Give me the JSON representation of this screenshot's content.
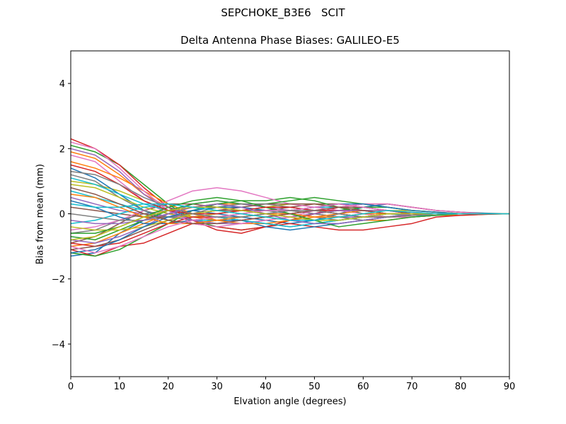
{
  "figure": {
    "suptitle": "SEPCHOKE_B3E6   SCIT"
  },
  "chart_data": {
    "type": "line",
    "title": "Delta Antenna Phase Biases: GALILEO-E5",
    "xlabel": "Elvation angle (degrees)",
    "ylabel": "Bias from mean (mm)",
    "xlim": [
      0,
      90
    ],
    "ylim": [
      -5,
      5
    ],
    "xticks": [
      0,
      10,
      20,
      30,
      40,
      50,
      60,
      70,
      80,
      90
    ],
    "yticks": [
      -4,
      -2,
      0,
      2,
      4
    ],
    "ytick_labels": [
      "−4",
      "−2",
      "0",
      "2",
      "4"
    ],
    "grid": false,
    "legend": "none",
    "x": [
      0,
      5,
      10,
      15,
      20,
      25,
      30,
      35,
      40,
      45,
      50,
      55,
      60,
      65,
      70,
      75,
      80,
      85,
      90
    ],
    "series": [
      {
        "color": "#1f77b4",
        "values": [
          -1.3,
          -1.2,
          -0.6,
          -0.2,
          0.0,
          0.1,
          0.0,
          -0.1,
          -0.2,
          -0.3,
          -0.2,
          0.0,
          0.2,
          0.3,
          0.2,
          0.1,
          0.05,
          0.02,
          0.0
        ]
      },
      {
        "color": "#ff7f0e",
        "values": [
          1.9,
          1.7,
          1.2,
          0.6,
          0.2,
          -0.1,
          -0.2,
          -0.1,
          0.0,
          0.1,
          0.2,
          0.2,
          0.1,
          0.0,
          -0.05,
          -0.05,
          -0.05,
          -0.02,
          0.0
        ]
      },
      {
        "color": "#2ca02c",
        "values": [
          2.1,
          1.9,
          1.5,
          0.9,
          0.3,
          -0.2,
          -0.4,
          -0.5,
          -0.4,
          -0.2,
          0.0,
          0.1,
          0.2,
          0.2,
          0.1,
          0.05,
          0.0,
          0.0,
          0.0
        ]
      },
      {
        "color": "#d62728",
        "values": [
          -1.1,
          -1.3,
          -1.0,
          -0.9,
          -0.6,
          -0.3,
          -0.4,
          -0.5,
          -0.4,
          -0.3,
          -0.4,
          -0.5,
          -0.5,
          -0.4,
          -0.3,
          -0.1,
          -0.05,
          -0.02,
          0.0
        ]
      },
      {
        "color": "#9467bd",
        "values": [
          0.5,
          0.3,
          0.1,
          0.0,
          -0.1,
          -0.1,
          0.0,
          0.1,
          0.2,
          0.2,
          0.1,
          0.0,
          -0.1,
          -0.1,
          -0.1,
          -0.05,
          0.0,
          0.0,
          0.0
        ]
      },
      {
        "color": "#8c564b",
        "values": [
          -0.9,
          -0.7,
          -0.3,
          0.1,
          0.3,
          0.3,
          0.2,
          0.1,
          0.1,
          0.2,
          0.3,
          0.3,
          0.2,
          0.1,
          0.0,
          0.0,
          0.0,
          0.0,
          0.0
        ]
      },
      {
        "color": "#e377c2",
        "values": [
          1.8,
          1.6,
          1.0,
          0.4,
          0.0,
          -0.2,
          -0.3,
          -0.2,
          -0.1,
          0.0,
          0.1,
          0.1,
          0.1,
          0.0,
          0.0,
          0.0,
          0.0,
          0.0,
          0.0
        ]
      },
      {
        "color": "#7f7f7f",
        "values": [
          -0.6,
          -0.5,
          -0.2,
          0.0,
          0.1,
          0.2,
          0.3,
          0.2,
          0.1,
          0.0,
          -0.1,
          -0.2,
          -0.1,
          0.0,
          0.0,
          0.0,
          0.0,
          0.0,
          0.0
        ]
      },
      {
        "color": "#bcbd22",
        "values": [
          1.0,
          0.9,
          0.7,
          0.4,
          0.1,
          -0.2,
          -0.3,
          -0.3,
          -0.2,
          -0.1,
          0.0,
          0.1,
          0.1,
          0.1,
          0.05,
          0.0,
          0.0,
          0.0,
          0.0
        ]
      },
      {
        "color": "#17becf",
        "values": [
          0.7,
          0.5,
          0.3,
          0.1,
          -0.1,
          -0.2,
          -0.2,
          -0.1,
          0.0,
          0.1,
          0.2,
          0.2,
          0.1,
          0.0,
          -0.05,
          -0.05,
          0.0,
          0.0,
          0.0
        ]
      },
      {
        "color": "#1f77b4",
        "values": [
          1.4,
          1.1,
          0.6,
          0.1,
          -0.2,
          -0.3,
          -0.2,
          -0.2,
          -0.3,
          -0.4,
          -0.3,
          -0.2,
          -0.1,
          0.0,
          0.0,
          0.0,
          0.0,
          0.0,
          0.0
        ]
      },
      {
        "color": "#ff7f0e",
        "values": [
          -1.0,
          -0.9,
          -0.6,
          -0.3,
          0.0,
          0.2,
          0.3,
          0.3,
          0.2,
          0.1,
          0.0,
          -0.1,
          -0.2,
          -0.2,
          -0.1,
          -0.05,
          0.0,
          0.0,
          0.0
        ]
      },
      {
        "color": "#2ca02c",
        "values": [
          -1.2,
          -1.3,
          -1.1,
          -0.7,
          -0.3,
          0.1,
          0.3,
          0.4,
          0.4,
          0.5,
          0.4,
          0.2,
          0.0,
          -0.1,
          -0.1,
          -0.05,
          0.0,
          0.0,
          0.0
        ]
      },
      {
        "color": "#d62728",
        "values": [
          2.3,
          2.0,
          1.5,
          0.8,
          0.2,
          -0.2,
          -0.5,
          -0.6,
          -0.4,
          -0.2,
          0.0,
          0.2,
          0.3,
          0.3,
          0.2,
          0.1,
          0.05,
          0.0,
          0.0
        ]
      },
      {
        "color": "#9467bd",
        "values": [
          -0.8,
          -0.9,
          -0.7,
          -0.4,
          0.0,
          0.3,
          0.4,
          0.3,
          0.2,
          0.1,
          0.0,
          -0.1,
          -0.1,
          0.0,
          0.0,
          0.0,
          0.0,
          0.0,
          0.0
        ]
      },
      {
        "color": "#8c564b",
        "values": [
          0.2,
          0.1,
          0.0,
          -0.1,
          -0.1,
          0.0,
          0.1,
          0.1,
          0.0,
          -0.1,
          -0.2,
          -0.2,
          -0.1,
          0.0,
          0.0,
          0.0,
          0.0,
          0.0,
          0.0
        ]
      },
      {
        "color": "#e377c2",
        "values": [
          -0.5,
          -0.4,
          -0.2,
          0.1,
          0.4,
          0.7,
          0.8,
          0.7,
          0.5,
          0.3,
          0.2,
          0.1,
          0.0,
          -0.1,
          -0.1,
          -0.05,
          0.0,
          0.0,
          0.0
        ]
      },
      {
        "color": "#7f7f7f",
        "values": [
          1.2,
          1.0,
          0.5,
          0.1,
          -0.1,
          -0.2,
          -0.1,
          0.0,
          0.1,
          0.1,
          0.0,
          -0.1,
          -0.2,
          -0.1,
          0.0,
          0.0,
          0.0,
          0.0,
          0.0
        ]
      },
      {
        "color": "#bcbd22",
        "values": [
          0.9,
          0.8,
          0.5,
          0.2,
          0.0,
          -0.1,
          0.0,
          0.1,
          0.2,
          0.3,
          0.3,
          0.2,
          0.1,
          0.0,
          0.0,
          0.0,
          0.0,
          0.0,
          0.0
        ]
      },
      {
        "color": "#17becf",
        "values": [
          -0.3,
          -0.2,
          0.0,
          0.2,
          0.3,
          0.2,
          0.1,
          0.0,
          -0.1,
          -0.2,
          -0.3,
          -0.3,
          -0.2,
          -0.1,
          0.0,
          0.0,
          0.0,
          0.0,
          0.0
        ]
      },
      {
        "color": "#1f77b4",
        "values": [
          0.4,
          0.2,
          -0.1,
          -0.3,
          -0.3,
          -0.2,
          -0.1,
          -0.2,
          -0.4,
          -0.5,
          -0.4,
          -0.3,
          -0.2,
          -0.1,
          -0.05,
          0.0,
          0.0,
          0.0,
          0.0
        ]
      },
      {
        "color": "#ff7f0e",
        "values": [
          1.6,
          1.4,
          1.1,
          0.7,
          0.3,
          0.0,
          -0.2,
          -0.3,
          -0.3,
          -0.2,
          -0.1,
          0.0,
          0.1,
          0.1,
          0.05,
          0.0,
          0.0,
          0.0,
          0.0
        ]
      },
      {
        "color": "#2ca02c",
        "values": [
          -0.7,
          -0.8,
          -0.5,
          -0.2,
          0.1,
          0.3,
          0.4,
          0.3,
          0.3,
          0.4,
          0.5,
          0.4,
          0.3,
          0.2,
          0.1,
          0.05,
          0.0,
          0.0,
          0.0
        ]
      },
      {
        "color": "#d62728",
        "values": [
          -0.9,
          -1.0,
          -0.9,
          -0.6,
          -0.3,
          -0.1,
          -0.1,
          -0.2,
          -0.1,
          0.0,
          0.1,
          0.1,
          0.1,
          0.0,
          0.0,
          0.0,
          0.0,
          0.0,
          0.0
        ]
      },
      {
        "color": "#9467bd",
        "values": [
          2.0,
          1.8,
          1.3,
          0.6,
          0.1,
          -0.2,
          -0.3,
          -0.3,
          -0.2,
          -0.1,
          0.0,
          0.1,
          0.1,
          0.1,
          0.0,
          0.0,
          0.0,
          0.0,
          0.0
        ]
      },
      {
        "color": "#8c564b",
        "values": [
          -1.1,
          -1.0,
          -0.8,
          -0.5,
          -0.2,
          0.0,
          0.1,
          0.2,
          0.3,
          0.3,
          0.3,
          0.2,
          0.1,
          0.0,
          0.0,
          0.0,
          0.0,
          0.0,
          0.0
        ]
      },
      {
        "color": "#e377c2",
        "values": [
          2.2,
          2.0,
          1.4,
          0.7,
          0.1,
          -0.3,
          -0.4,
          -0.3,
          -0.2,
          -0.1,
          0.1,
          0.2,
          0.3,
          0.3,
          0.2,
          0.1,
          0.05,
          0.0,
          0.0
        ]
      },
      {
        "color": "#7f7f7f",
        "values": [
          0.0,
          -0.1,
          -0.2,
          -0.2,
          -0.1,
          0.0,
          0.2,
          0.3,
          0.3,
          0.2,
          0.1,
          0.0,
          -0.1,
          -0.1,
          0.0,
          0.0,
          0.0,
          0.0,
          0.0
        ]
      },
      {
        "color": "#bcbd22",
        "values": [
          -0.4,
          -0.5,
          -0.5,
          -0.4,
          -0.2,
          0.0,
          0.1,
          0.0,
          -0.1,
          -0.2,
          -0.2,
          -0.1,
          0.0,
          0.1,
          0.1,
          0.05,
          0.0,
          0.0,
          0.0
        ]
      },
      {
        "color": "#17becf",
        "values": [
          1.1,
          0.9,
          0.6,
          0.3,
          0.1,
          0.0,
          -0.1,
          -0.2,
          -0.3,
          -0.4,
          -0.3,
          -0.2,
          -0.1,
          0.0,
          0.0,
          0.0,
          0.0,
          0.0,
          0.0
        ]
      },
      {
        "color": "#1f77b4",
        "values": [
          -1.2,
          -1.1,
          -0.8,
          -0.4,
          -0.1,
          0.1,
          0.2,
          0.2,
          0.1,
          0.1,
          0.2,
          0.3,
          0.3,
          0.2,
          0.1,
          0.05,
          0.0,
          0.0,
          0.0
        ]
      },
      {
        "color": "#ff7f0e",
        "values": [
          0.6,
          0.5,
          0.2,
          -0.1,
          -0.3,
          -0.3,
          -0.2,
          -0.1,
          0.0,
          0.0,
          -0.1,
          -0.1,
          0.0,
          0.0,
          0.0,
          0.0,
          0.0,
          0.0,
          0.0
        ]
      },
      {
        "color": "#2ca02c",
        "values": [
          -0.6,
          -0.6,
          -0.4,
          -0.1,
          0.2,
          0.4,
          0.5,
          0.4,
          0.2,
          0.0,
          -0.2,
          -0.4,
          -0.3,
          -0.2,
          -0.1,
          -0.05,
          0.0,
          0.0,
          0.0
        ]
      },
      {
        "color": "#d62728",
        "values": [
          1.5,
          1.3,
          0.9,
          0.4,
          0.1,
          0.0,
          0.0,
          0.1,
          0.2,
          0.2,
          0.1,
          0.0,
          -0.1,
          -0.1,
          -0.05,
          0.0,
          0.0,
          0.0,
          0.0
        ]
      },
      {
        "color": "#9467bd",
        "values": [
          -0.2,
          -0.3,
          -0.3,
          -0.2,
          0.0,
          0.2,
          0.3,
          0.2,
          0.0,
          -0.2,
          -0.3,
          -0.3,
          -0.2,
          -0.1,
          0.0,
          0.0,
          0.0,
          0.0,
          0.0
        ]
      },
      {
        "color": "#8c564b",
        "values": [
          0.8,
          0.6,
          0.3,
          0.0,
          -0.2,
          -0.3,
          -0.3,
          -0.2,
          -0.1,
          0.0,
          0.1,
          0.2,
          0.2,
          0.1,
          0.0,
          0.0,
          0.0,
          0.0,
          0.0
        ]
      },
      {
        "color": "#e377c2",
        "values": [
          -1.0,
          -1.2,
          -1.0,
          -0.7,
          -0.4,
          -0.2,
          -0.1,
          0.0,
          0.1,
          0.1,
          0.2,
          0.3,
          0.2,
          0.1,
          0.05,
          0.0,
          0.0,
          0.0,
          0.0
        ]
      },
      {
        "color": "#7f7f7f",
        "values": [
          1.3,
          1.2,
          0.9,
          0.5,
          0.2,
          0.0,
          -0.1,
          -0.1,
          0.0,
          0.1,
          0.1,
          0.0,
          -0.1,
          -0.1,
          -0.05,
          0.0,
          0.0,
          0.0,
          0.0
        ]
      },
      {
        "color": "#bcbd22",
        "values": [
          -0.8,
          -0.7,
          -0.4,
          -0.1,
          0.1,
          0.2,
          0.2,
          0.1,
          0.0,
          -0.1,
          -0.2,
          -0.2,
          -0.1,
          0.0,
          0.0,
          0.0,
          0.0,
          0.0,
          0.0
        ]
      },
      {
        "color": "#17becf",
        "values": [
          0.3,
          0.2,
          0.2,
          0.3,
          0.3,
          0.2,
          0.1,
          0.0,
          -0.1,
          -0.2,
          -0.2,
          -0.1,
          0.0,
          0.1,
          0.05,
          0.0,
          0.0,
          0.0,
          0.0
        ]
      }
    ]
  }
}
